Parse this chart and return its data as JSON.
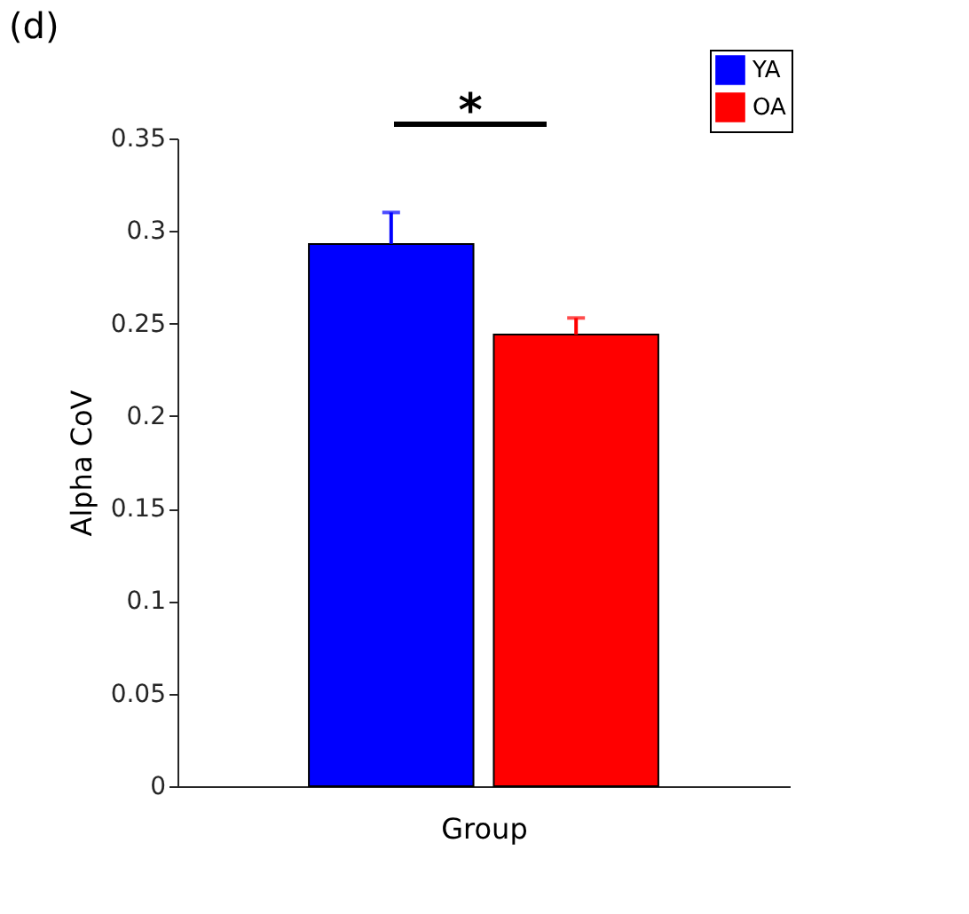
{
  "chart_data": {
    "type": "bar",
    "title": "(d)",
    "xlabel": "Group",
    "ylabel": "Alpha CoV",
    "categories": [
      null
    ],
    "series": [
      {
        "name": "YA",
        "color": "#0000ff",
        "values": [
          0.293
        ],
        "errors": [
          [
            0.293,
            0.31
          ]
        ]
      },
      {
        "name": "OA",
        "color": "#ff0000",
        "values": [
          0.244
        ],
        "errors": [
          [
            0.244,
            0.253
          ]
        ]
      }
    ],
    "ylim": [
      0,
      0.35
    ],
    "yticks": [
      {
        "value": 0,
        "label": "0"
      },
      0.05,
      {
        "value": 0.1,
        "label": "0.1"
      },
      0.15,
      {
        "value": 0.2,
        "label": "0.2"
      },
      0.25,
      {
        "value": 0.3,
        "label": "0.3"
      },
      0.35
    ],
    "annotations": [
      "*"
    ],
    "legend": "top right",
    "grid": false
  }
}
